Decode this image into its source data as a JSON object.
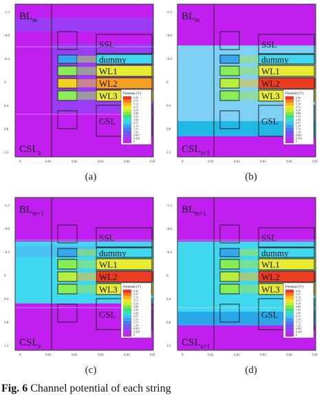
{
  "figure": {
    "caption_label": "Fig. 6",
    "caption_text": "Channel potential of each string",
    "colors": {
      "bg_magenta": "#c01ff0",
      "bg_violet": "#9a3cf5",
      "cyan": "#3fd8ee",
      "cyan_dark": "#22b8e6",
      "sky": "#7fd0f5",
      "green": "#33dd55",
      "yellow": "#e8ec30",
      "orange": "#f5a020",
      "red": "#ee3a20"
    }
  },
  "legend": {
    "title": "Potential (V)",
    "values": [
      "6.00",
      "5.57",
      "5.14",
      "4.71",
      "4.29",
      "3.86",
      "3.43",
      "3.00",
      "2.57",
      "2.14",
      "1.71",
      "1.29",
      "0.857",
      "0.429",
      "0"
    ]
  },
  "panels": [
    {
      "id": "a",
      "label": "(a)",
      "bl_main": "BL",
      "bl_sub": "m",
      "csl_main": "CSL",
      "csl_sub": "a",
      "layers": [
        "SSL",
        "dummy",
        "WL1",
        "WL2",
        "WL3",
        "GSL"
      ],
      "yticks": [
        "-1.2",
        "-0.8",
        "-0.4",
        "0",
        "0.4",
        "0.8",
        "1.2"
      ],
      "xticks": [
        "0",
        "0.01",
        "0.02",
        "0.03",
        "0.04",
        "0.05"
      ],
      "state": "a"
    },
    {
      "id": "b",
      "label": "(b)",
      "bl_main": "BL",
      "bl_sub": "m",
      "csl_main": "CSL",
      "csl_sub": "a+1",
      "layers": [
        "SSL",
        "dummy",
        "WL1",
        "WL2",
        "WL3",
        "GSL"
      ],
      "yticks": [
        "-1.2",
        "-0.8",
        "-0.4",
        "0",
        "0.4",
        "0.8",
        "1.2"
      ],
      "xticks": [
        "0",
        "0.01",
        "0.02",
        "0.03",
        "0.04",
        "0.05"
      ],
      "state": "b"
    },
    {
      "id": "c",
      "label": "(c)",
      "bl_main": "BL",
      "bl_sub": "m+1",
      "csl_main": "CSL",
      "csl_sub": "a",
      "layers": [
        "SSL",
        "dummy",
        "WL1",
        "WL2",
        "WL3",
        "GSL"
      ],
      "yticks": [
        "-1.2",
        "-0.8",
        "-0.4",
        "0",
        "0.4",
        "0.8",
        "1.2"
      ],
      "xticks": [
        "0",
        "0.01",
        "0.02",
        "0.03",
        "0.04",
        "0.05"
      ],
      "state": "c"
    },
    {
      "id": "d",
      "label": "(d)",
      "bl_main": "BL",
      "bl_sub": "m+1",
      "csl_main": "CSL",
      "csl_sub": "a+1",
      "layers": [
        "SSL",
        "dummy",
        "WL1",
        "WL2",
        "WL3",
        "GSL"
      ],
      "yticks": [
        "-1.2",
        "-0.8",
        "-0.4",
        "0",
        "0.4",
        "0.8",
        "1.2"
      ],
      "xticks": [
        "0",
        "0.01",
        "0.02",
        "0.03",
        "0.04",
        "0.05"
      ],
      "state": "d"
    }
  ]
}
